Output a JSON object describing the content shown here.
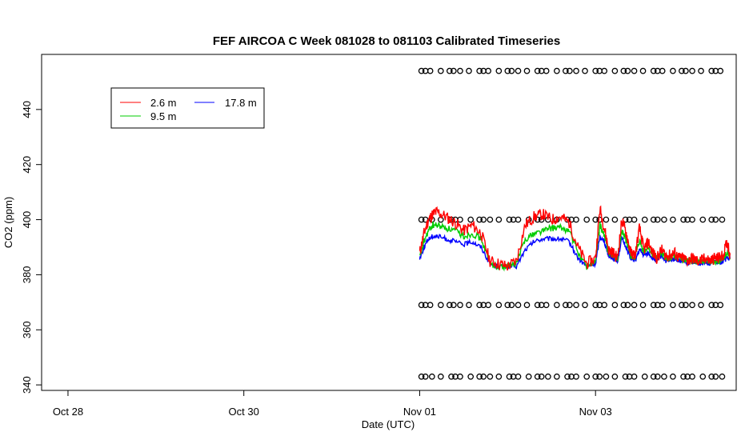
{
  "chart_data": {
    "type": "line",
    "title": "FEF AIRCOA C  Week 081028 to 081103  Calibrated Timeseries",
    "xlabel": "Date (UTC)",
    "ylabel": "CO2 (ppm)",
    "x_unit": "days since Oct 28 00:00 UTC",
    "xlim": [
      -0.3,
      7.6
    ],
    "ylim": [
      338,
      460
    ],
    "x_ticks": [
      {
        "value": 0,
        "label": "Oct 28"
      },
      {
        "value": 2,
        "label": "Oct 30"
      },
      {
        "value": 4,
        "label": "Nov 01"
      },
      {
        "value": 6,
        "label": "Nov 03"
      }
    ],
    "y_ticks": [
      340,
      360,
      380,
      400,
      420,
      440
    ],
    "grid": false,
    "legend_position": "top-left",
    "series": [
      {
        "name": "2.6 m",
        "color": "#ff0000",
        "x": [
          4.0,
          4.05,
          4.1,
          4.15,
          4.2,
          4.3,
          4.4,
          4.5,
          4.6,
          4.7,
          4.8,
          4.9,
          5.0,
          5.1,
          5.2,
          5.3,
          5.4,
          5.5,
          5.6,
          5.7,
          5.8,
          5.9,
          6.0,
          6.05,
          6.1,
          6.15,
          6.2,
          6.25,
          6.3,
          6.35,
          6.4,
          6.45,
          6.5,
          6.55,
          6.6,
          6.65,
          6.7,
          6.75,
          6.8,
          6.85,
          6.9,
          6.95,
          7.0,
          7.05,
          7.1,
          7.15,
          7.2,
          7.25,
          7.3,
          7.35,
          7.4,
          7.45,
          7.5,
          7.53
        ],
        "y": [
          388,
          395,
          400,
          402,
          403,
          401,
          399,
          396,
          398,
          395,
          385,
          384,
          383,
          385,
          398,
          401,
          402,
          400,
          401,
          399,
          390,
          384,
          386,
          404,
          397,
          389,
          388,
          386,
          400,
          395,
          388,
          387,
          397,
          389,
          392,
          388,
          386,
          389,
          387,
          387,
          388,
          386,
          386,
          385,
          386,
          385,
          385,
          386,
          385,
          386,
          386,
          387,
          392,
          387
        ]
      },
      {
        "name": "9.5 m",
        "color": "#00cc00",
        "x": [
          4.0,
          4.05,
          4.1,
          4.15,
          4.2,
          4.3,
          4.4,
          4.5,
          4.6,
          4.7,
          4.8,
          4.9,
          5.0,
          5.1,
          5.2,
          5.3,
          5.4,
          5.5,
          5.6,
          5.7,
          5.8,
          5.9,
          6.0,
          6.05,
          6.1,
          6.15,
          6.2,
          6.25,
          6.3,
          6.35,
          6.4,
          6.45,
          6.5,
          6.55,
          6.6,
          6.65,
          6.7,
          6.75,
          6.8,
          6.85,
          6.9,
          6.95,
          7.0,
          7.05,
          7.1,
          7.15,
          7.2,
          7.25,
          7.3,
          7.35,
          7.4,
          7.45,
          7.5,
          7.53
        ],
        "y": [
          386,
          392,
          396,
          398,
          398,
          397,
          396,
          394,
          395,
          393,
          384,
          383,
          383,
          384,
          393,
          395,
          396,
          397,
          397,
          396,
          388,
          383,
          385,
          398,
          394,
          388,
          387,
          386,
          396,
          392,
          387,
          386,
          392,
          388,
          390,
          387,
          386,
          388,
          386,
          386,
          387,
          386,
          385,
          385,
          385,
          385,
          385,
          385,
          385,
          385,
          385,
          386,
          388,
          386
        ]
      },
      {
        "name": "17.8 m",
        "color": "#0000ff",
        "x": [
          4.0,
          4.05,
          4.1,
          4.15,
          4.2,
          4.3,
          4.4,
          4.5,
          4.6,
          4.7,
          4.8,
          4.9,
          5.0,
          5.1,
          5.2,
          5.3,
          5.4,
          5.5,
          5.6,
          5.7,
          5.8,
          5.9,
          6.0,
          6.05,
          6.1,
          6.15,
          6.2,
          6.25,
          6.3,
          6.35,
          6.4,
          6.45,
          6.5,
          6.55,
          6.6,
          6.65,
          6.7,
          6.75,
          6.8,
          6.85,
          6.9,
          6.95,
          7.0,
          7.05,
          7.1,
          7.15,
          7.2,
          7.25,
          7.3,
          7.35,
          7.4,
          7.45,
          7.5,
          7.53
        ],
        "y": [
          386,
          390,
          393,
          394,
          394,
          393,
          392,
          391,
          392,
          390,
          384,
          383,
          383,
          383,
          389,
          392,
          393,
          393,
          393,
          392,
          386,
          383,
          384,
          394,
          392,
          387,
          386,
          385,
          393,
          390,
          386,
          385,
          389,
          387,
          388,
          386,
          385,
          387,
          385,
          385,
          386,
          385,
          385,
          384,
          385,
          384,
          384,
          385,
          384,
          385,
          384,
          385,
          386,
          386
        ]
      }
    ],
    "calibration_series": {
      "marker": "circle",
      "levels": [
        454,
        400,
        369,
        343
      ],
      "x_range": [
        4.02,
        7.5
      ]
    }
  }
}
